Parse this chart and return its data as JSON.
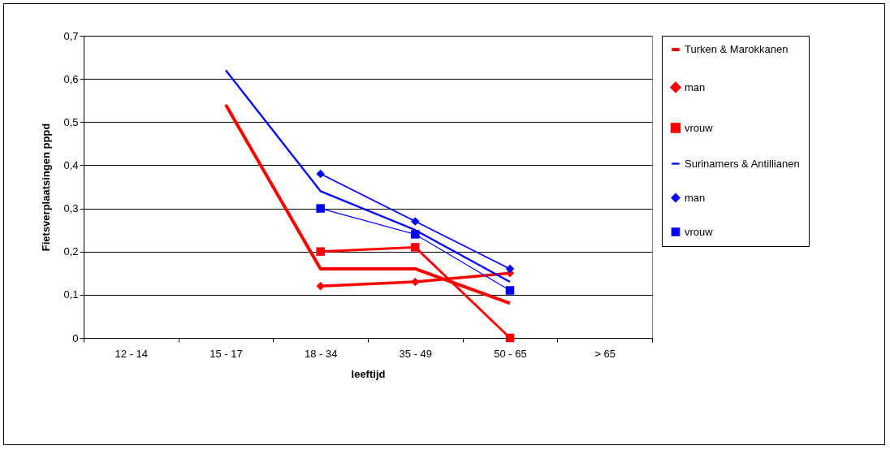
{
  "chart_data": {
    "type": "line",
    "xlabel": "leeftijd",
    "ylabel": "Fietsverplaatsingen pppd",
    "categories": [
      "12 - 14",
      "15 - 17",
      "18 - 34",
      "35 - 49",
      "50 - 65",
      "> 65"
    ],
    "ylim": [
      0,
      0.7
    ],
    "yticks": [
      {
        "value": 0,
        "label": "0"
      },
      {
        "value": 0.1,
        "label": "0,1"
      },
      {
        "value": 0.2,
        "label": "0,2"
      },
      {
        "value": 0.3,
        "label": "0,3"
      },
      {
        "value": 0.4,
        "label": "0,4"
      },
      {
        "value": 0.5,
        "label": "0,5"
      },
      {
        "value": 0.6,
        "label": "0,6"
      },
      {
        "value": 0.7,
        "label": "0,7"
      }
    ],
    "grid": "y",
    "legend": "right",
    "series": [
      {
        "name": "Turken & Marokkanen",
        "color": "#ff0000",
        "marker": "none",
        "values": [
          null,
          0.54,
          0.16,
          0.16,
          0.08,
          null
        ]
      },
      {
        "name": "man",
        "color": "#ff0000",
        "marker": "diamond",
        "values": [
          null,
          null,
          0.12,
          0.13,
          0.15,
          null
        ]
      },
      {
        "name": "vrouw",
        "color": "#ff0000",
        "marker": "square",
        "values": [
          null,
          null,
          0.2,
          0.21,
          0.0,
          null
        ]
      },
      {
        "name": "Surinamers & Antillianen",
        "color": "#0000ff",
        "marker": "none",
        "values": [
          null,
          0.62,
          0.34,
          0.25,
          0.13,
          null
        ]
      },
      {
        "name": "man",
        "color": "#0000ff",
        "marker": "diamond",
        "values": [
          null,
          null,
          0.38,
          0.27,
          0.16,
          null
        ]
      },
      {
        "name": "vrouw",
        "color": "#0000ff",
        "marker": "square",
        "values": [
          null,
          null,
          0.3,
          0.24,
          0.11,
          null
        ]
      }
    ]
  }
}
